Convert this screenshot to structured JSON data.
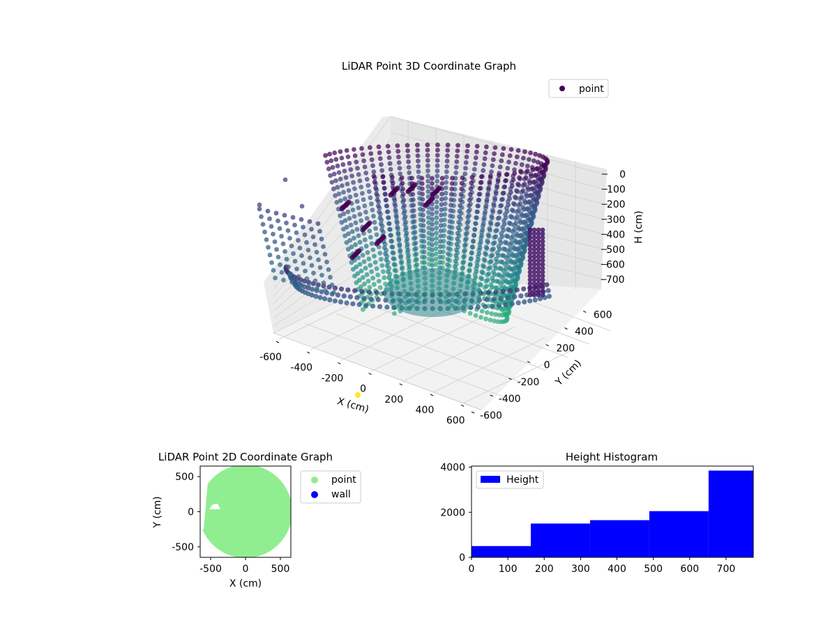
{
  "colors": {
    "background": "#ffffff",
    "pane_floor": "#f2f2f2",
    "pane_wall": "#ebebeb",
    "grid": "#d3d3d3",
    "viridis_dark": "#440154",
    "viridis_mid": "#31688e",
    "viridis_teal": "#35b779",
    "viridis_yellow": "#fde725",
    "point_2d": "#90ee90",
    "wall_2d": "#0000ff",
    "hist_bar": "#0000ff"
  },
  "chart_data": [
    {
      "type": "scatter",
      "title": "LiDAR Point 3D Coordinate Graph",
      "xlabel": "X (cm)",
      "ylabel": "Y (cm)",
      "zlabel": "H (cm)",
      "xlim": [
        -650,
        650
      ],
      "ylim": [
        -650,
        650
      ],
      "zlim": [
        760,
        0
      ],
      "x_ticks": [
        -600,
        -400,
        -200,
        0,
        200,
        400,
        600
      ],
      "y_ticks": [
        -600,
        -400,
        -200,
        0,
        200,
        400,
        600
      ],
      "z_ticks": [
        0,
        100,
        200,
        300,
        400,
        500,
        600,
        700
      ],
      "legend": [
        "point"
      ],
      "legend_loc": "upper right",
      "grid": true,
      "colormap": "viridis",
      "description_of_points": "dense cylindrical shell of points, radius about 600 cm, heights 0 to about 750 cm, open on the -X side, plus scattered outlier points",
      "shell_radius": 600,
      "shell_height": [
        0,
        750
      ],
      "outlier_points": [
        {
          "x": 0,
          "y": 0,
          "h": 760
        }
      ]
    },
    {
      "type": "scatter",
      "title": "LiDAR Point 2D Coordinate Graph",
      "xlabel": "X (cm)",
      "ylabel": "Y (cm)",
      "xlim": [
        -650,
        650
      ],
      "ylim": [
        -650,
        650
      ],
      "x_ticks": [
        -500,
        0,
        500
      ],
      "y_ticks": [
        -500,
        0,
        500
      ],
      "legend": [
        "point",
        "wall"
      ],
      "legend_loc": "outside right",
      "grid": false
    },
    {
      "type": "bar",
      "title": "Height Histogram",
      "legend": [
        "Height"
      ],
      "legend_loc": "upper left",
      "xlim": [
        0,
        775
      ],
      "ylim": [
        0,
        4050
      ],
      "x_ticks": [
        0,
        100,
        200,
        300,
        400,
        500,
        600,
        700
      ],
      "y_ticks": [
        0,
        2000,
        4000
      ],
      "bins": [
        {
          "from": 0,
          "to": 163,
          "count": 500
        },
        {
          "from": 163,
          "to": 326,
          "count": 1500
        },
        {
          "from": 326,
          "to": 489,
          "count": 1650
        },
        {
          "from": 489,
          "to": 652,
          "count": 2050
        },
        {
          "from": 652,
          "to": 775,
          "count": 3850
        }
      ]
    }
  ]
}
